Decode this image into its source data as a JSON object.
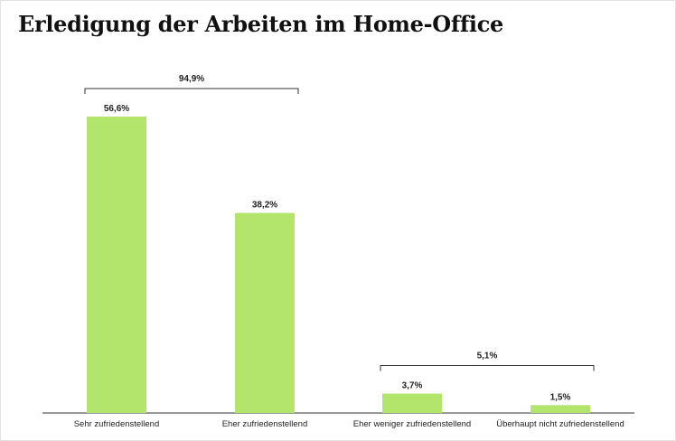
{
  "title": "Erledigung der Arbeiten im Home-Office",
  "chart_data": {
    "type": "bar",
    "title": "Erledigung der Arbeiten im Home-Office",
    "categories": [
      "Sehr zufriedenstellend",
      "Eher zufriedenstellend",
      "Eher weniger zufriedenstellend",
      "Überhaupt nicht zufriedenstellend"
    ],
    "values": [
      56.6,
      38.2,
      3.7,
      1.5
    ],
    "value_labels": [
      "56,6%",
      "38,2%",
      "3,7%",
      "1,5%"
    ],
    "unit": "%",
    "ylim": [
      0,
      56.6
    ],
    "xlabel": "",
    "ylabel": "",
    "grid": false,
    "bar_color": "#b3e46b",
    "groups": [
      {
        "label": "94,9%",
        "from": 0,
        "to": 1
      },
      {
        "label": "5,1%",
        "from": 2,
        "to": 3
      }
    ]
  }
}
